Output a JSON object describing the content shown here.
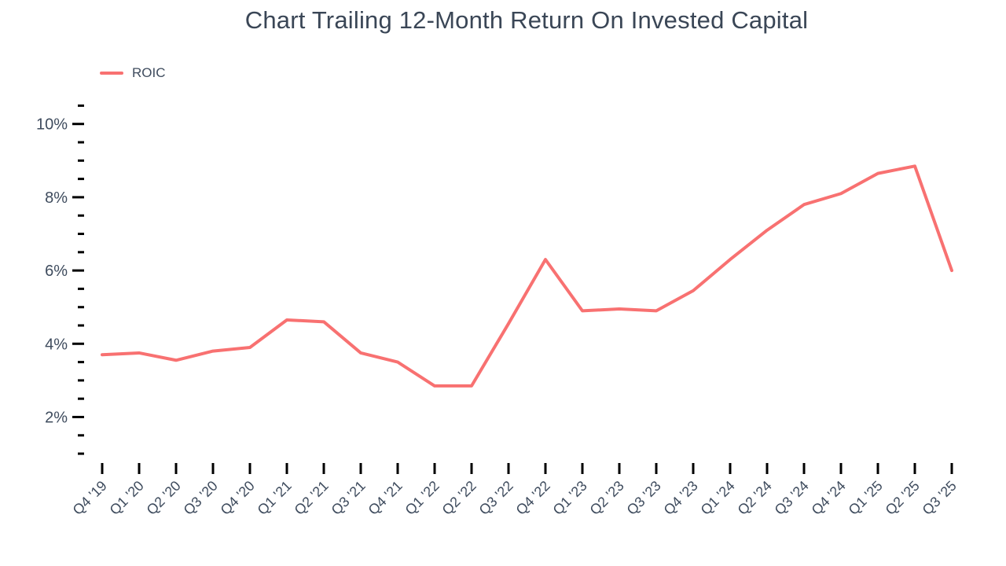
{
  "chart_data": {
    "type": "line",
    "title": "Chart Trailing 12-Month Return On Invested Capital",
    "categories": [
      "Q4 '19",
      "Q1 '20",
      "Q2 '20",
      "Q3 '20",
      "Q4 '20",
      "Q1 '21",
      "Q2 '21",
      "Q3 '21",
      "Q4 '21",
      "Q1 '22",
      "Q2 '22",
      "Q3 '22",
      "Q4 '22",
      "Q1 '23",
      "Q2 '23",
      "Q3 '23",
      "Q4 '23",
      "Q1 '24",
      "Q2 '24",
      "Q3 '24",
      "Q4 '24",
      "Q1 '25",
      "Q2 '25",
      "Q3 '25"
    ],
    "series": [
      {
        "name": "ROIC",
        "color": "#F87171",
        "values": [
          3.7,
          3.75,
          3.55,
          3.8,
          3.9,
          4.65,
          4.6,
          3.75,
          3.5,
          2.85,
          2.85,
          4.55,
          6.3,
          4.9,
          4.95,
          4.9,
          5.45,
          6.3,
          7.1,
          7.8,
          8.1,
          8.65,
          8.85,
          6.0
        ]
      }
    ],
    "y_axis": {
      "unit": "%",
      "range": [
        1,
        10.5
      ],
      "major_ticks": [
        2,
        4,
        6,
        8,
        10
      ],
      "major_labels": [
        "2%",
        "4%",
        "6%",
        "8%",
        "10%"
      ],
      "minor_step": 0.5
    },
    "x_axis": {
      "label_rotation_deg": -45
    },
    "legend": {
      "position": "top-left",
      "entries": [
        {
          "label": "ROIC",
          "color": "#F87171"
        }
      ]
    },
    "grid": false,
    "colors": {
      "tick": "#000000",
      "axis_label": "#3F4C5E",
      "title": "#3A4656"
    }
  }
}
